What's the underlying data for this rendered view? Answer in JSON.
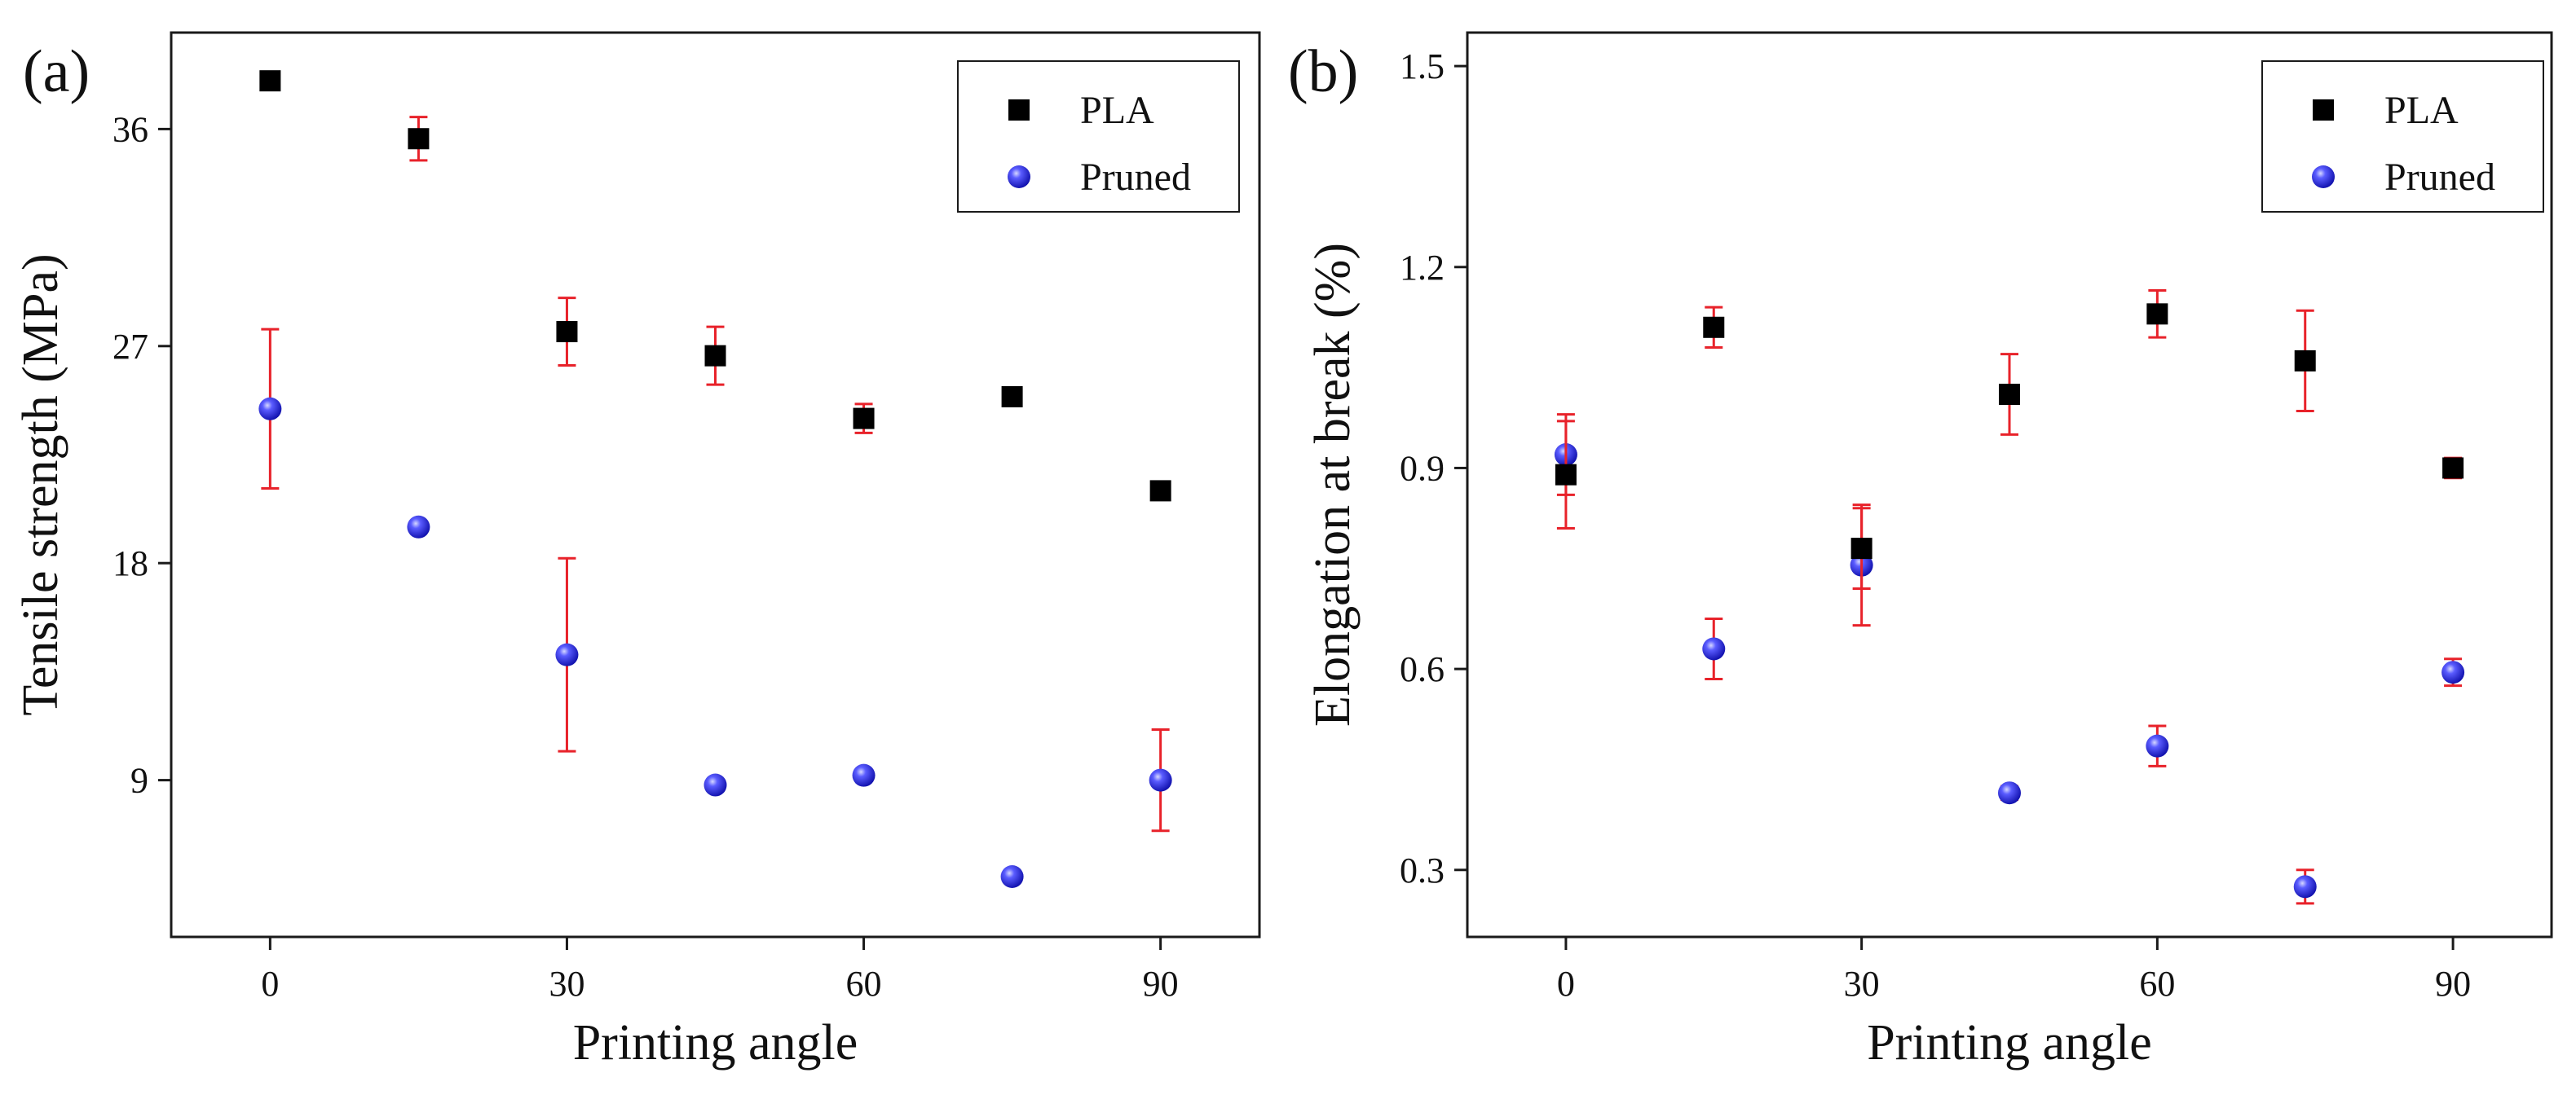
{
  "chart_data": [
    {
      "type": "scatter",
      "panel_label": "(a)",
      "xlabel": "Printing angle",
      "ylabel": "Tensile strength (MPa)",
      "x_ticks": [
        "0",
        "30",
        "60",
        "90"
      ],
      "y_ticks": [
        "9",
        "18",
        "27",
        "36"
      ],
      "xlim": [
        -10,
        100
      ],
      "ylim": [
        2.5,
        40
      ],
      "legend_position": "top-right",
      "series": [
        {
          "name": "PLA",
          "marker": "square",
          "color": "#000000",
          "x": [
            0,
            15,
            30,
            45,
            60,
            75,
            90
          ],
          "y": [
            38.0,
            35.6,
            27.6,
            26.6,
            24.0,
            24.9,
            21.0
          ],
          "err": [
            0.3,
            0.9,
            1.4,
            1.2,
            0.6,
            0.3,
            0.2
          ]
        },
        {
          "name": "Pruned",
          "marker": "sphere",
          "color": "#1a1af0",
          "x": [
            0,
            15,
            30,
            45,
            60,
            75,
            90
          ],
          "y": [
            24.4,
            19.5,
            14.2,
            8.8,
            9.2,
            5.0,
            9.0
          ],
          "err": [
            3.3,
            0.1,
            4.0,
            0.1,
            0.1,
            0.1,
            2.1
          ]
        }
      ]
    },
    {
      "type": "scatter",
      "panel_label": "(b)",
      "xlabel": "Printing angle",
      "ylabel": "Elongation at break (%)",
      "x_ticks": [
        "0",
        "30",
        "60",
        "90"
      ],
      "y_ticks": [
        "0.3",
        "0.6",
        "0.9",
        "1.2",
        "1.5"
      ],
      "xlim": [
        -10,
        100
      ],
      "ylim": [
        0.2,
        1.55
      ],
      "legend_position": "top-right",
      "series": [
        {
          "name": "PLA",
          "marker": "square",
          "color": "#000000",
          "x": [
            0,
            15,
            30,
            45,
            60,
            75,
            90
          ],
          "y": [
            0.89,
            1.11,
            0.78,
            1.01,
            1.13,
            1.06,
            0.9
          ],
          "err": [
            0.08,
            0.03,
            0.06,
            0.06,
            0.035,
            0.075,
            0.015
          ]
        },
        {
          "name": "Pruned",
          "marker": "sphere",
          "color": "#1a1af0",
          "x": [
            0,
            15,
            30,
            45,
            60,
            75,
            90
          ],
          "y": [
            0.92,
            0.63,
            0.755,
            0.415,
            0.485,
            0.275,
            0.595
          ],
          "err": [
            0.06,
            0.045,
            0.09,
            0.01,
            0.03,
            0.025,
            0.02
          ]
        }
      ]
    }
  ]
}
